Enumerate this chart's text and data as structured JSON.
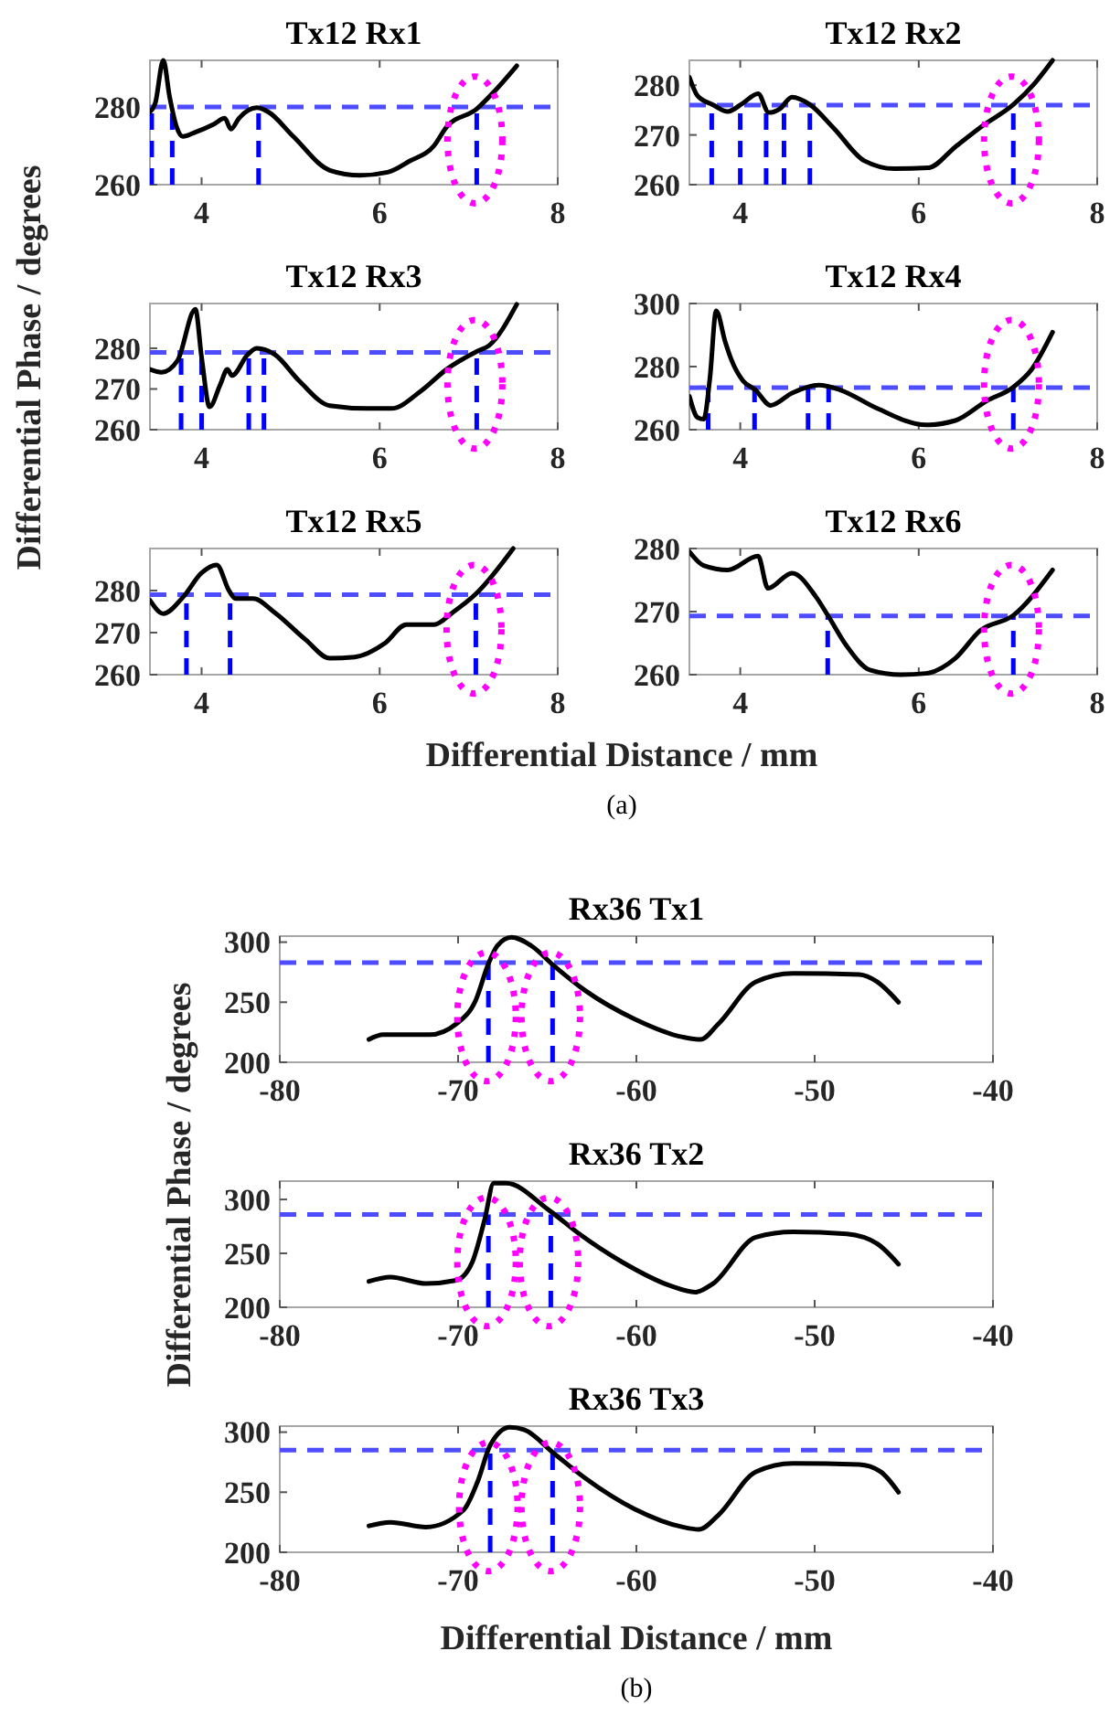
{
  "chart_data": [
    {
      "type": "line",
      "title": "Tx12 Rx1",
      "ylabel": "Differential Phase / degrees",
      "xlim": [
        3.42,
        8
      ],
      "ylim": [
        260,
        292
      ],
      "xticks": [
        4,
        6,
        8
      ],
      "yticks": [
        260,
        280
      ],
      "x": [
        3.42,
        3.48,
        3.57,
        3.64,
        3.72,
        3.79,
        3.93,
        4.14,
        4.26,
        4.33,
        4.42,
        4.62,
        4.75,
        5.03,
        5.44,
        5.78,
        6.09,
        6.33,
        6.61,
        6.75,
        7.09,
        7.3,
        7.54
      ],
      "series": [
        {
          "color": "#000000",
          "values": [
            278.7,
            281,
            292,
            282.7,
            274.8,
            272.4,
            273.5,
            275.6,
            277.1,
            274.3,
            277.1,
            279.8,
            278.7,
            272.4,
            263.7,
            262.4,
            263.2,
            266,
            270,
            274.8,
            279.5,
            284.3,
            290.6
          ]
        }
      ],
      "ref_lines": [
        {
          "axis": "y",
          "value": 280,
          "color": "#4d4dff",
          "line_style": "dashed"
        },
        {
          "axis": "x",
          "value": 3.44,
          "color": "#0000ff",
          "line_style": "dashed"
        },
        {
          "axis": "x",
          "value": 3.67,
          "color": "#0000ff",
          "line_style": "dashed"
        },
        {
          "axis": "x",
          "value": 4.64,
          "color": "#0000ff",
          "line_style": "dashed"
        },
        {
          "axis": "x",
          "value": 7.09,
          "color": "#0000ff",
          "line_style": "dashed"
        }
      ]
    },
    {
      "type": "line",
      "title": "Tx12 Rx2",
      "xlim": [
        3.43,
        8
      ],
      "ylim": [
        260,
        285
      ],
      "xticks": [
        4,
        6,
        8
      ],
      "yticks": [
        260,
        270,
        280
      ],
      "x": [
        3.43,
        3.52,
        3.69,
        3.86,
        4.03,
        4.2,
        4.32,
        4.44,
        4.58,
        4.78,
        5.05,
        5.39,
        5.73,
        6.11,
        6.41,
        6.72,
        7.06,
        7.3,
        7.5
      ],
      "series": [
        {
          "color": "#000000",
          "values": [
            281.6,
            277.9,
            276.1,
            274.7,
            276.4,
            278.3,
            274.5,
            275.2,
            277.6,
            276.1,
            271.3,
            264.8,
            263.2,
            263.4,
            267.6,
            271.9,
            276.1,
            280.4,
            285
          ]
        }
      ],
      "ref_lines": [
        {
          "axis": "y",
          "value": 276,
          "color": "#4d4dff",
          "line_style": "dashed"
        },
        {
          "axis": "x",
          "value": 3.68,
          "color": "#0000ff",
          "line_style": "dashed"
        },
        {
          "axis": "x",
          "value": 4.0,
          "color": "#0000ff",
          "line_style": "dashed"
        },
        {
          "axis": "x",
          "value": 4.29,
          "color": "#0000ff",
          "line_style": "dashed"
        },
        {
          "axis": "x",
          "value": 4.49,
          "color": "#0000ff",
          "line_style": "dashed"
        },
        {
          "axis": "x",
          "value": 4.78,
          "color": "#0000ff",
          "line_style": "dashed"
        },
        {
          "axis": "x",
          "value": 7.06,
          "color": "#0000ff",
          "line_style": "dashed"
        }
      ]
    },
    {
      "type": "line",
      "title": "Tx12 Rx3",
      "xlim": [
        3.42,
        8
      ],
      "ylim": [
        260,
        291
      ],
      "xticks": [
        4,
        6,
        8
      ],
      "yticks": [
        260,
        270,
        280
      ],
      "x": [
        3.42,
        3.55,
        3.73,
        3.93,
        4.0,
        4.09,
        4.21,
        4.29,
        4.34,
        4.52,
        4.62,
        4.82,
        5.1,
        5.44,
        5.86,
        6.13,
        6.47,
        6.75,
        7.09,
        7.23,
        7.54
      ],
      "series": [
        {
          "color": "#000000",
          "values": [
            274.8,
            274.1,
            277,
            289.6,
            277.8,
            265.6,
            271.1,
            274.8,
            273.3,
            278.5,
            280,
            278.5,
            271.9,
            265.9,
            265.2,
            265.2,
            269.6,
            274.8,
            279.2,
            280.7,
            290.8
          ]
        }
      ],
      "ref_lines": [
        {
          "axis": "y",
          "value": 279,
          "color": "#4d4dff",
          "line_style": "dashed"
        },
        {
          "axis": "x",
          "value": 3.77,
          "color": "#0000ff",
          "line_style": "dashed"
        },
        {
          "axis": "x",
          "value": 4.0,
          "color": "#0000ff",
          "line_style": "dashed"
        },
        {
          "axis": "x",
          "value": 4.53,
          "color": "#0000ff",
          "line_style": "dashed"
        },
        {
          "axis": "x",
          "value": 4.7,
          "color": "#0000ff",
          "line_style": "dashed"
        },
        {
          "axis": "x",
          "value": 7.09,
          "color": "#0000ff",
          "line_style": "dashed"
        }
      ]
    },
    {
      "type": "line",
      "title": "Tx12 Rx4",
      "xlim": [
        3.43,
        8
      ],
      "ylim": [
        260,
        300
      ],
      "xticks": [
        4,
        6,
        8
      ],
      "yticks": [
        260,
        280,
        300
      ],
      "x": [
        3.43,
        3.52,
        3.59,
        3.66,
        3.73,
        3.83,
        3.9,
        4.03,
        4.17,
        4.34,
        4.58,
        4.88,
        5.12,
        5.53,
        6.08,
        6.41,
        6.76,
        7.06,
        7.27,
        7.5
      ],
      "series": [
        {
          "color": "#000000",
          "values": [
            270.6,
            263.9,
            263.3,
            276.4,
            297.7,
            288,
            282.2,
            275.5,
            272.6,
            267.7,
            271.6,
            274.1,
            272.6,
            266.8,
            261.5,
            262.9,
            269.1,
            273.5,
            279.3,
            290.9
          ]
        }
      ],
      "ref_lines": [
        {
          "axis": "y",
          "value": 273.3,
          "color": "#4d4dff",
          "line_style": "dashed"
        },
        {
          "axis": "x",
          "value": 3.64,
          "color": "#0000ff",
          "line_style": "dashed"
        },
        {
          "axis": "x",
          "value": 4.16,
          "color": "#0000ff",
          "line_style": "dashed"
        },
        {
          "axis": "x",
          "value": 4.76,
          "color": "#0000ff",
          "line_style": "dashed"
        },
        {
          "axis": "x",
          "value": 4.99,
          "color": "#0000ff",
          "line_style": "dashed"
        },
        {
          "axis": "x",
          "value": 7.06,
          "color": "#0000ff",
          "line_style": "dashed"
        }
      ]
    },
    {
      "type": "line",
      "title": "Tx12 Rx5",
      "xlabel": "Differential Distance / mm",
      "annotations": [
        "(a)"
      ],
      "xlim": [
        3.42,
        8
      ],
      "ylim": [
        260,
        290
      ],
      "xticks": [
        4,
        6,
        8
      ],
      "yticks": [
        260,
        270,
        280
      ],
      "x": [
        3.42,
        3.57,
        3.79,
        4.0,
        4.17,
        4.31,
        4.38,
        4.58,
        4.82,
        5.17,
        5.44,
        5.72,
        6.06,
        6.3,
        6.61,
        6.82,
        7.09,
        7.5
      ],
      "series": [
        {
          "color": "#000000",
          "values": [
            277.7,
            274.5,
            278.4,
            284.2,
            286.1,
            279.9,
            278.1,
            278.1,
            274.8,
            268.3,
            263.9,
            264.2,
            267.5,
            271.9,
            271.9,
            274.8,
            279.4,
            290
          ]
        }
      ],
      "ref_lines": [
        {
          "axis": "y",
          "value": 279,
          "color": "#4d4dff",
          "line_style": "dashed"
        },
        {
          "axis": "x",
          "value": 3.83,
          "color": "#0000ff",
          "line_style": "dashed"
        },
        {
          "axis": "x",
          "value": 4.32,
          "color": "#0000ff",
          "line_style": "dashed"
        },
        {
          "axis": "x",
          "value": 7.08,
          "color": "#0000ff",
          "line_style": "dashed"
        }
      ]
    },
    {
      "type": "line",
      "title": "Tx12 Rx6",
      "xlim": [
        3.43,
        8
      ],
      "ylim": [
        260,
        280
      ],
      "xticks": [
        4,
        6,
        8
      ],
      "yticks": [
        260,
        270,
        280
      ],
      "x": [
        3.43,
        3.59,
        3.86,
        4.2,
        4.31,
        4.58,
        4.85,
        4.99,
        5.19,
        5.46,
        5.8,
        6.08,
        6.41,
        6.69,
        7.06,
        7.5
      ],
      "series": [
        {
          "color": "#000000",
          "values": [
            279.5,
            277.3,
            276.6,
            278.8,
            273.7,
            276.1,
            272.3,
            269.2,
            264.6,
            260.7,
            260,
            260.2,
            262.6,
            267,
            269.4,
            276.6
          ]
        }
      ],
      "ref_lines": [
        {
          "axis": "y",
          "value": 269.3,
          "color": "#4d4dff",
          "line_style": "dashed"
        },
        {
          "axis": "x",
          "value": 4.98,
          "color": "#0000ff",
          "line_style": "dashed"
        },
        {
          "axis": "x",
          "value": 7.06,
          "color": "#0000ff",
          "line_style": "dashed"
        }
      ]
    },
    {
      "type": "line",
      "title": "Rx36 Tx1",
      "ylabel": "Differential Phase / degrees",
      "xlim": [
        -80,
        -40
      ],
      "ylim": [
        200,
        305
      ],
      "xticks": [
        -80,
        -70,
        -60,
        -50,
        -40
      ],
      "yticks": [
        200,
        250,
        300
      ],
      "x": [
        -75,
        -74.2,
        -71.6,
        -70.1,
        -69,
        -68.3,
        -67.8,
        -67,
        -65.9,
        -64.6,
        -62.9,
        -60.1,
        -57.4,
        -56.4,
        -55.4,
        -53.3,
        -51.2,
        -47.5,
        -46.5,
        -45.3
      ],
      "series": [
        {
          "color": "#000000",
          "values": [
            219,
            223,
            223,
            232,
            252,
            282,
            297,
            304,
            297,
            280,
            260,
            236,
            221,
            219,
            232,
            267,
            274,
            273,
            267,
            250
          ]
        }
      ],
      "ref_lines": [
        {
          "axis": "y",
          "value": 283,
          "color": "#4d4dff",
          "line_style": "dashed"
        },
        {
          "axis": "x",
          "value": -68.3,
          "color": "#0000ff",
          "line_style": "dashed"
        },
        {
          "axis": "x",
          "value": -64.7,
          "color": "#0000ff",
          "line_style": "dashed"
        }
      ]
    },
    {
      "type": "line",
      "title": "Rx36 Tx2",
      "xlim": [
        -80,
        -40
      ],
      "ylim": [
        200,
        317
      ],
      "xticks": [
        -80,
        -70,
        -60,
        -50,
        -40
      ],
      "yticks": [
        200,
        250,
        300
      ],
      "x": [
        -75,
        -73.8,
        -71.8,
        -70.1,
        -69.2,
        -68.5,
        -68,
        -67.3,
        -64.9,
        -63.2,
        -60.8,
        -58.1,
        -56.7,
        -55.7,
        -53.3,
        -51.2,
        -48.2,
        -46.5,
        -45.3
      ],
      "series": [
        {
          "color": "#000000",
          "values": [
            224,
            228,
            222,
            225,
            242,
            282,
            315,
            315,
            290,
            268,
            242,
            220,
            214,
            222,
            265,
            270,
            268,
            259,
            240
          ]
        }
      ],
      "ref_lines": [
        {
          "axis": "y",
          "value": 286,
          "color": "#4d4dff",
          "line_style": "dashed"
        },
        {
          "axis": "x",
          "value": -68.3,
          "color": "#0000ff",
          "line_style": "dashed"
        },
        {
          "axis": "x",
          "value": -64.8,
          "color": "#0000ff",
          "line_style": "dashed"
        }
      ]
    },
    {
      "type": "line",
      "title": "Rx36 Tx3",
      "xlabel": "Differential Distance / mm",
      "annotations": [
        "(b)"
      ],
      "xlim": [
        -80,
        -40
      ],
      "ylim": [
        200,
        305
      ],
      "xticks": [
        -80,
        -70,
        -60,
        -50,
        -40
      ],
      "yticks": [
        200,
        250,
        300
      ],
      "x": [
        -75,
        -73.8,
        -71.8,
        -69.7,
        -68.9,
        -68.2,
        -67.1,
        -66.3,
        -64.6,
        -62.9,
        -60.1,
        -57.4,
        -56.5,
        -55.4,
        -53.3,
        -51.2,
        -47.5,
        -46.3,
        -45.3
      ],
      "series": [
        {
          "color": "#000000",
          "values": [
            222,
            225,
            221,
            235,
            259,
            289,
            304,
            302,
            282,
            262,
            236,
            221,
            219,
            231,
            267,
            274,
            273,
            267,
            250
          ]
        }
      ],
      "ref_lines": [
        {
          "axis": "y",
          "value": 285,
          "color": "#4d4dff",
          "line_style": "dashed"
        },
        {
          "axis": "x",
          "value": -68.2,
          "color": "#0000ff",
          "line_style": "dashed"
        },
        {
          "axis": "x",
          "value": -64.7,
          "color": "#0000ff",
          "line_style": "dashed"
        }
      ]
    }
  ]
}
